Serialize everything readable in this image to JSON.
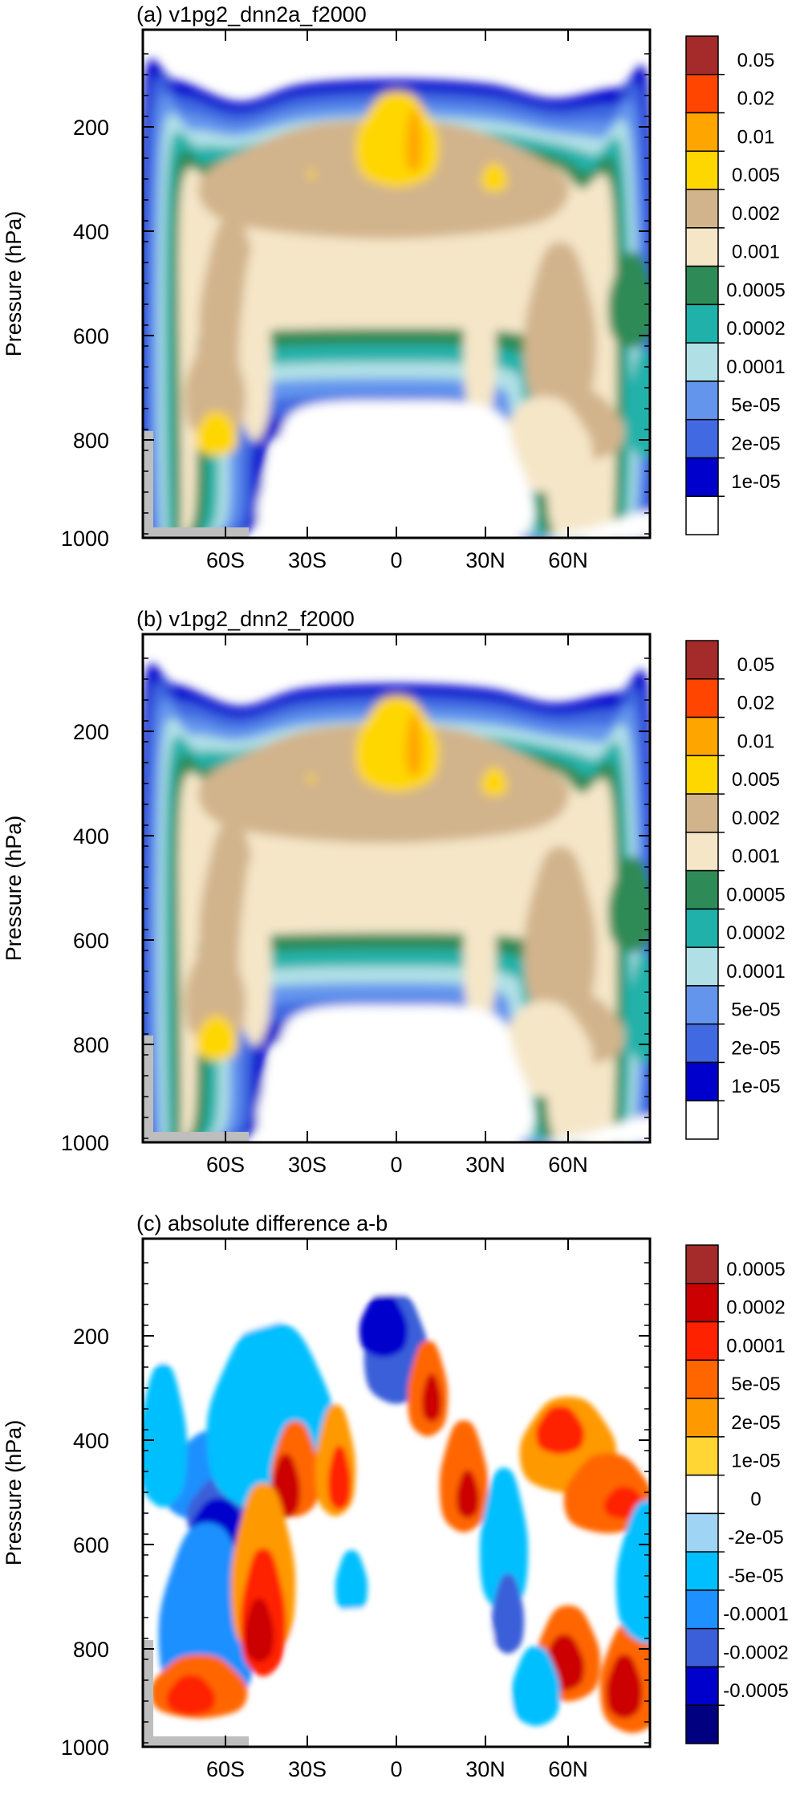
{
  "figure": {
    "panels": [
      {
        "title": "(a) v1pg2_dnn2a_f2000",
        "ylabel": "Pressure (hPa)",
        "yticks": [
          "200",
          "400",
          "600",
          "800",
          "1000"
        ],
        "xticks": [
          "60S",
          "30S",
          "0",
          "30N",
          "60N"
        ],
        "colorbar": {
          "labels": [
            "0.05",
            "0.02",
            "0.01",
            "0.005",
            "0.002",
            "0.001",
            "0.0005",
            "0.0002",
            "0.0001",
            "5e-05",
            "2e-05",
            "1e-05"
          ],
          "colors": [
            "#a52a2a",
            "#ff4500",
            "#ffa500",
            "#ffd700",
            "#d2b48c",
            "#f5e6c8",
            "#2e8b57",
            "#20b2aa",
            "#b0e0e6",
            "#6495ed",
            "#4169e1",
            "#0000cd",
            "#ffffff"
          ]
        }
      },
      {
        "title": "(b) v1pg2_dnn2_f2000",
        "ylabel": "Pressure (hPa)",
        "yticks": [
          "200",
          "400",
          "600",
          "800",
          "1000"
        ],
        "xticks": [
          "60S",
          "30S",
          "0",
          "30N",
          "60N"
        ],
        "colorbar": {
          "labels": [
            "0.05",
            "0.02",
            "0.01",
            "0.005",
            "0.002",
            "0.001",
            "0.0005",
            "0.0002",
            "0.0001",
            "5e-05",
            "2e-05",
            "1e-05"
          ],
          "colors": [
            "#a52a2a",
            "#ff4500",
            "#ffa500",
            "#ffd700",
            "#d2b48c",
            "#f5e6c8",
            "#2e8b57",
            "#20b2aa",
            "#b0e0e6",
            "#6495ed",
            "#4169e1",
            "#0000cd",
            "#ffffff"
          ]
        }
      },
      {
        "title": "(c) absolute difference a-b",
        "ylabel": "Pressure (hPa)",
        "yticks": [
          "200",
          "400",
          "600",
          "800",
          "1000"
        ],
        "xticks": [
          "60S",
          "30S",
          "0",
          "30N",
          "60N"
        ],
        "colorbar": {
          "labels": [
            "0.0005",
            "0.0002",
            "0.0001",
            "5e-05",
            "2e-05",
            "1e-05",
            "0",
            "-2e-05",
            "-5e-05",
            "-0.0001",
            "-0.0002",
            "-0.0005"
          ],
          "colors": [
            "#a52a2a",
            "#cc0000",
            "#ff2200",
            "#ff6600",
            "#ff9900",
            "#ffd633",
            "#ffffff",
            "#9fd4f5",
            "#00bfff",
            "#1e90ff",
            "#3a5fd9",
            "#0000cd",
            "#000080"
          ]
        }
      }
    ]
  },
  "chart_data": [
    {
      "type": "heatmap",
      "title": "(a) v1pg2_dnn2a_f2000",
      "xlabel": "",
      "ylabel": "Pressure (hPa)",
      "x_ticks": [
        "60S",
        "30S",
        "0",
        "30N",
        "60N"
      ],
      "x_tick_values": [
        -60,
        -30,
        0,
        30,
        60
      ],
      "y_ticks": [
        200,
        400,
        600,
        800,
        1000
      ],
      "xlim": [
        -90,
        90
      ],
      "ylim": [
        1000,
        30
      ],
      "contour_levels": [
        1e-05,
        2e-05,
        5e-05,
        0.0001,
        0.0002,
        0.0005,
        0.001,
        0.002,
        0.005,
        0.01,
        0.02,
        0.05
      ],
      "features": {
        "field_top_pressure": 90,
        "lower_gap_center_lat": -5,
        "lower_gap_top_pressure": 560,
        "max_core_region": {
          "lat": [
            -15,
            5
          ],
          "pressure": [
            160,
            320
          ],
          "level": 0.01
        },
        "low_level_max_60S": {
          "lat": -60,
          "pressure": 810,
          "level": 0.005
        }
      }
    },
    {
      "type": "heatmap",
      "title": "(b) v1pg2_dnn2_f2000",
      "xlabel": "",
      "ylabel": "Pressure (hPa)",
      "x_ticks": [
        "60S",
        "30S",
        "0",
        "30N",
        "60N"
      ],
      "x_tick_values": [
        -60,
        -30,
        0,
        30,
        60
      ],
      "y_ticks": [
        200,
        400,
        600,
        800,
        1000
      ],
      "xlim": [
        -90,
        90
      ],
      "ylim": [
        1000,
        30
      ],
      "contour_levels": [
        1e-05,
        2e-05,
        5e-05,
        0.0001,
        0.0002,
        0.0005,
        0.001,
        0.002,
        0.005,
        0.01,
        0.02,
        0.05
      ],
      "features": {
        "field_top_pressure": 90,
        "lower_gap_center_lat": -5,
        "lower_gap_top_pressure": 560,
        "max_core_region": {
          "lat": [
            -15,
            5
          ],
          "pressure": [
            160,
            320
          ],
          "level": 0.01
        },
        "low_level_max_60S": {
          "lat": -60,
          "pressure": 810,
          "level": 0.005
        }
      }
    },
    {
      "type": "heatmap",
      "title": "(c) absolute difference a-b",
      "xlabel": "",
      "ylabel": "Pressure (hPa)",
      "x_ticks": [
        "60S",
        "30S",
        "0",
        "30N",
        "60N"
      ],
      "x_tick_values": [
        -60,
        -30,
        0,
        30,
        60
      ],
      "y_ticks": [
        200,
        400,
        600,
        800,
        1000
      ],
      "xlim": [
        -90,
        90
      ],
      "ylim": [
        1000,
        30
      ],
      "contour_levels": [
        -0.0005,
        -0.0002,
        -0.0001,
        -5e-05,
        -2e-05,
        0,
        1e-05,
        2e-05,
        5e-05,
        0.0001,
        0.0002,
        0.0005
      ],
      "features": {
        "negative_maximum": {
          "lat": -60,
          "pressure": 420
        },
        "positive_maxima": [
          {
            "lat": -55,
            "pressure": 820
          },
          {
            "lat": 60,
            "pressure": 820
          },
          {
            "lat": 22,
            "pressure": 340
          }
        ]
      }
    }
  ]
}
